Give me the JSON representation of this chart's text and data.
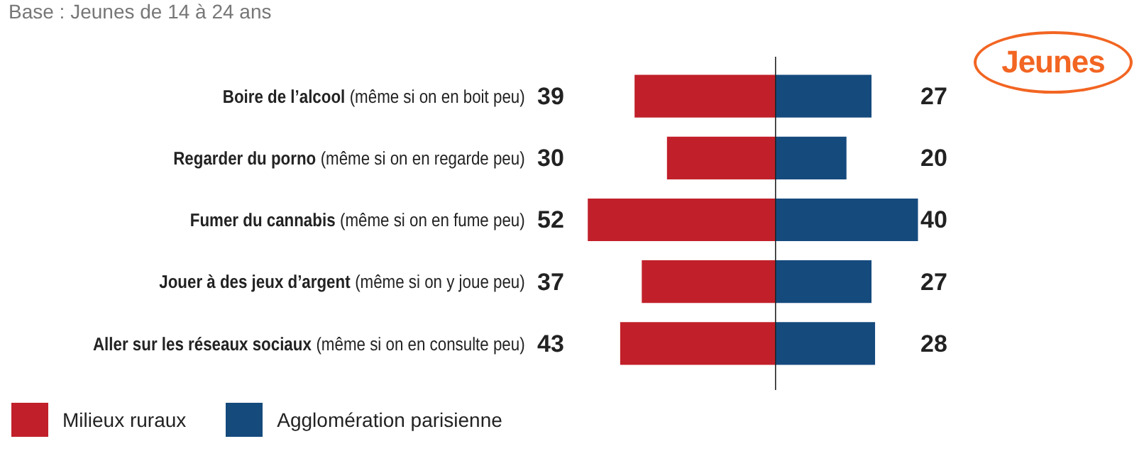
{
  "chart_data": [
    {
      "type": "bar",
      "orientation": "horizontal",
      "subtitle": "Base : Jeunes de 14 à 24 ans",
      "annotations": [
        "Jeunes"
      ],
      "categories": [
        "Boire de l’alcool (même si on en boit peu)",
        "Regarder du porno (même si on en regarde peu)",
        "Fumer du cannabis (même si on en fume peu)",
        "Jouer à des jeux d’argent (même si on y joue peu)",
        "Aller sur les réseaux sociaux (même si on en consulte peu)"
      ],
      "series": [
        {
          "name": "Milieux ruraux",
          "color": "#c1202a",
          "values": [
            39,
            30,
            52,
            37,
            43
          ]
        }
      ],
      "data_labels": true,
      "legend": "bottom left"
    },
    {
      "type": "bar",
      "orientation": "horizontal",
      "categories": [
        null,
        null,
        null,
        null,
        null
      ],
      "series": [
        {
          "name": "Agglomération parisienne",
          "color": "#154a7d",
          "values": [
            27,
            20,
            40,
            27,
            28
          ]
        }
      ],
      "data_labels": true,
      "legend": "bottom left"
    }
  ]
}
